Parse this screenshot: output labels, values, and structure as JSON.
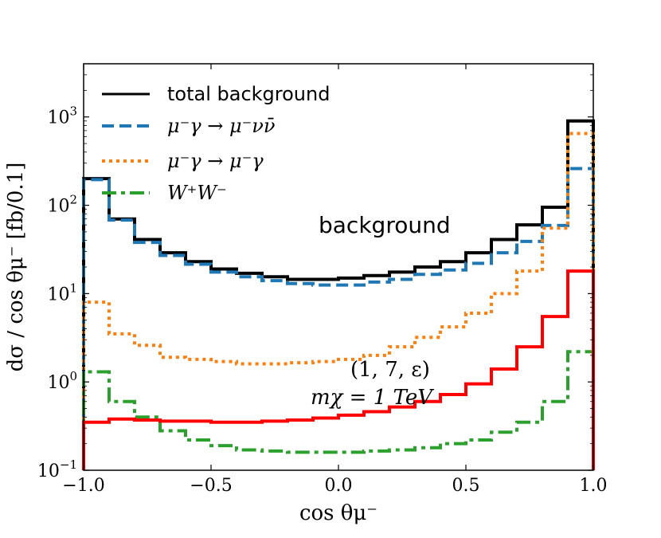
{
  "chart_data": {
    "type": "line",
    "subtype": "step-histogram",
    "x_bin_edges": [
      -1.0,
      -0.9,
      -0.8,
      -0.7,
      -0.6,
      -0.5,
      -0.4,
      -0.3,
      -0.2,
      -0.1,
      0.0,
      0.1,
      0.2,
      0.3,
      0.4,
      0.5,
      0.6,
      0.7,
      0.8,
      0.9,
      1.0
    ],
    "xlim": [
      -1.0,
      1.0
    ],
    "ylim": [
      0.1,
      4000
    ],
    "yscale": "log",
    "xlabel": "cos θμ⁻",
    "ylabel": "dσ / cos θμ⁻ [fb/0.1]",
    "x_ticks": [
      {
        "value": -1.0,
        "label": "−1.0"
      },
      {
        "value": -0.5,
        "label": "−0.5"
      },
      {
        "value": 0.0,
        "label": "0.0"
      },
      {
        "value": 0.5,
        "label": "0.5"
      },
      {
        "value": 1.0,
        "label": "1.0"
      }
    ],
    "y_ticks": [
      {
        "value": 0.1,
        "base": "10",
        "exp": "−1"
      },
      {
        "value": 1,
        "base": "10",
        "exp": "0"
      },
      {
        "value": 10,
        "base": "10",
        "exp": "1"
      },
      {
        "value": 100,
        "base": "10",
        "exp": "2"
      },
      {
        "value": 1000,
        "base": "10",
        "exp": "3"
      }
    ],
    "series": [
      {
        "name": "total background",
        "color": "#000000",
        "style": "solid",
        "values": [
          200,
          70,
          41,
          29,
          23,
          19,
          17,
          15.5,
          14.5,
          14.5,
          15,
          16,
          17.5,
          20,
          23,
          29,
          41,
          60,
          95,
          900
        ]
      },
      {
        "name": "μ⁻γ → μ⁻νν̄",
        "color": "#1f77b4",
        "style": "dashed",
        "values": [
          195,
          68,
          38,
          27,
          21.5,
          17.5,
          15.5,
          14,
          13,
          12.5,
          12.5,
          13.5,
          14.5,
          16.5,
          18.5,
          22,
          29,
          39,
          59,
          260
        ]
      },
      {
        "name": "μ⁻γ → μ⁻γ",
        "color": "#ff7f0e",
        "style": "dotted",
        "values": [
          8,
          3.5,
          2.6,
          1.9,
          1.8,
          1.7,
          1.6,
          1.6,
          1.65,
          1.7,
          1.8,
          2.0,
          2.5,
          3.2,
          4.2,
          6.0,
          10,
          18,
          55,
          650
        ]
      },
      {
        "name": "W⁺W⁻",
        "color": "#2ca02c",
        "style": "dashdot",
        "values": [
          1.3,
          0.6,
          0.4,
          0.28,
          0.22,
          0.19,
          0.17,
          0.165,
          0.16,
          0.16,
          0.16,
          0.165,
          0.17,
          0.18,
          0.2,
          0.22,
          0.27,
          0.35,
          0.6,
          2.2
        ]
      },
      {
        "name": "signal (1,7,ε), mχ = 1 TeV",
        "color": "#ff0000",
        "style": "solid",
        "values": [
          0.35,
          0.38,
          0.37,
          0.36,
          0.36,
          0.35,
          0.35,
          0.36,
          0.37,
          0.39,
          0.42,
          0.46,
          0.52,
          0.6,
          0.72,
          0.95,
          1.4,
          2.5,
          5.5,
          18
        ]
      }
    ],
    "legend": {
      "position": "top-left",
      "entries": [
        "total background",
        "μ⁻γ → μ⁻νν̄",
        "μ⁻γ → μ⁻γ",
        "W⁺W⁻"
      ]
    },
    "annotations": {
      "background_label": "background",
      "signal_label_line1": "(1, 7, ε)",
      "signal_label_line2": "mχ = 1 TeV"
    }
  }
}
